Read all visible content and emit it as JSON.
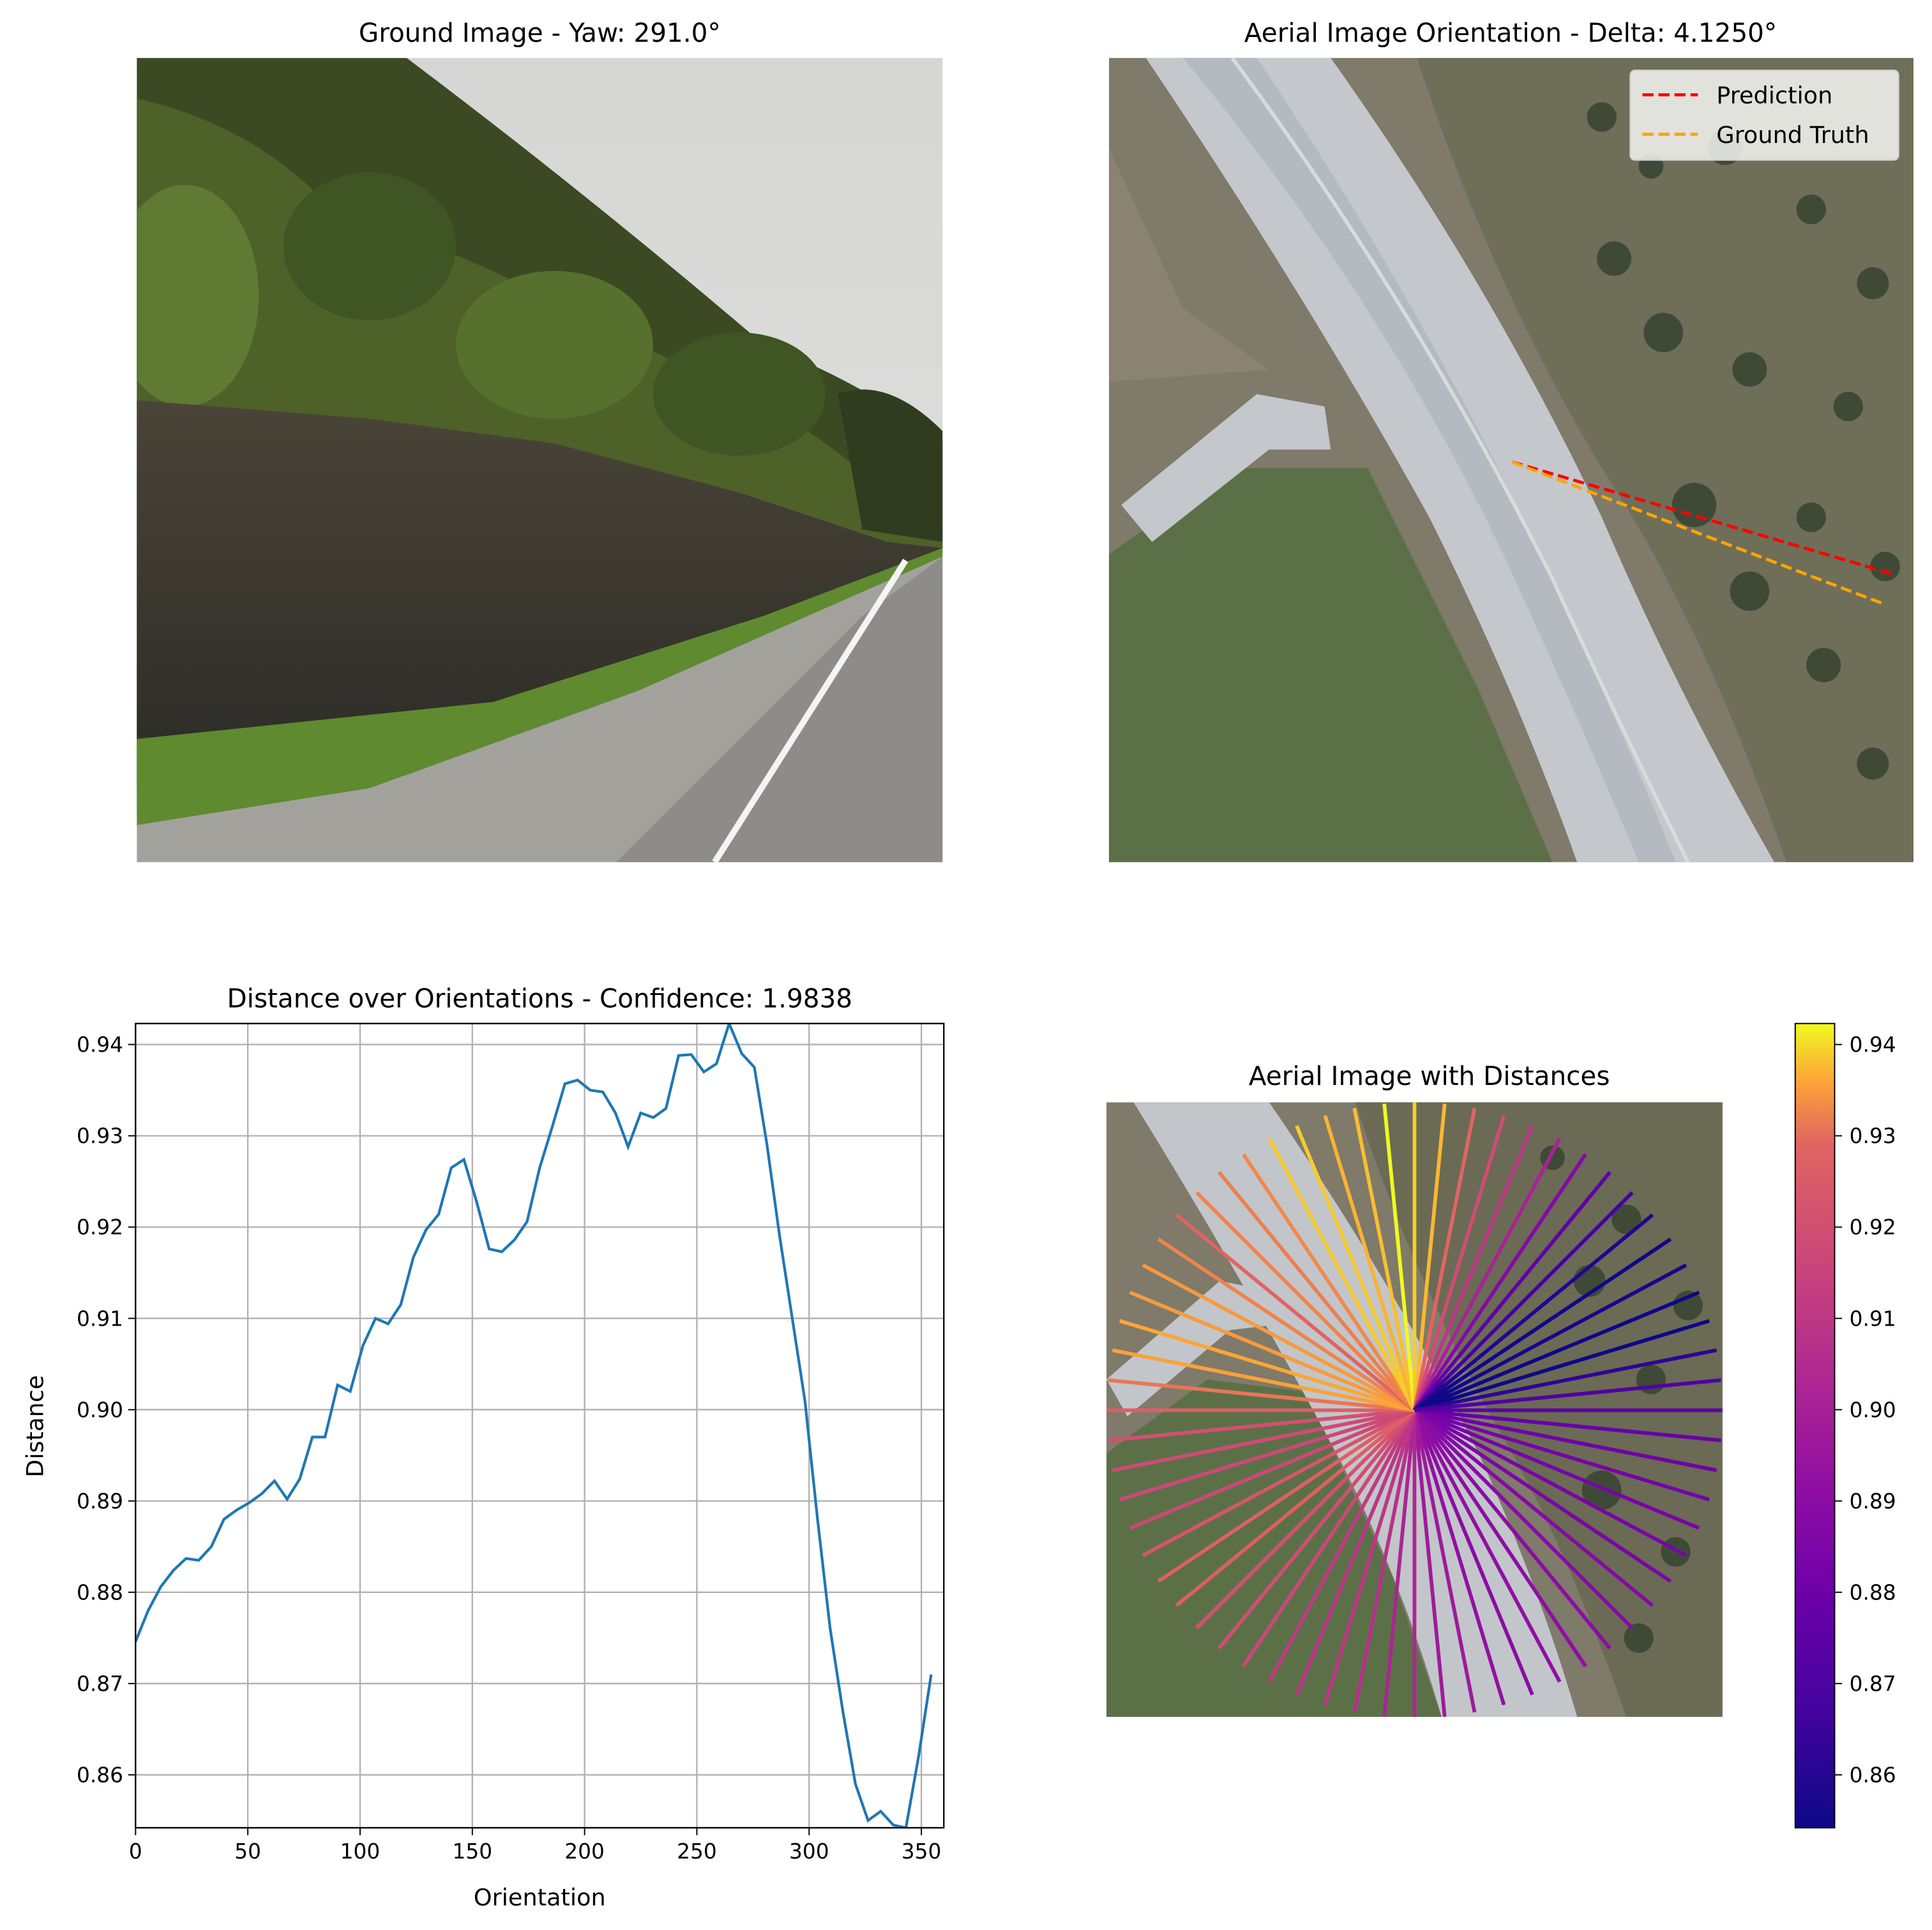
{
  "panels": {
    "ground": {
      "title": "Ground Image - Yaw: 291.0°"
    },
    "aerial": {
      "title": "Aerial Image Orientation - Delta: 4.1250°"
    },
    "dist_aerial": {
      "title": "Aerial Image with Distances"
    }
  },
  "legend": {
    "entries": [
      {
        "label": "Prediction",
        "color": "#ff0000"
      },
      {
        "label": "Ground Truth",
        "color": "#ffa500"
      }
    ]
  },
  "colorbar": {
    "colormap": "plasma",
    "range": [
      0.8542,
      0.9423
    ],
    "ticks": [
      "0.86",
      "0.87",
      "0.88",
      "0.89",
      "0.90",
      "0.91",
      "0.92",
      "0.93",
      "0.94"
    ]
  },
  "chart_data": {
    "type": "line",
    "title": "Distance over Orientations - Confidence: 1.9838",
    "xlabel": "Orientation",
    "ylabel": "Distance",
    "xlim": [
      0,
      360
    ],
    "ylim": [
      0.8542,
      0.9423
    ],
    "grid": true,
    "color": "#1f77b4",
    "xticks": [
      0,
      50,
      100,
      150,
      200,
      250,
      300,
      350
    ],
    "yticks": [
      0.86,
      0.87,
      0.88,
      0.89,
      0.9,
      0.91,
      0.92,
      0.93,
      0.94
    ],
    "ytick_labels": [
      "0.86",
      "0.87",
      "0.88",
      "0.89",
      "0.90",
      "0.91",
      "0.92",
      "0.93",
      "0.94"
    ],
    "x": [
      0,
      5.625,
      11.25,
      16.875,
      22.5,
      28.125,
      33.75,
      39.375,
      45,
      50.625,
      56.25,
      61.875,
      67.5,
      73.125,
      78.75,
      84.375,
      90,
      95.625,
      101.25,
      106.875,
      112.5,
      118.125,
      123.75,
      129.375,
      135,
      140.625,
      146.25,
      151.875,
      157.5,
      163.125,
      168.75,
      174.375,
      180,
      185.625,
      191.25,
      196.875,
      202.5,
      208.125,
      213.75,
      219.375,
      225,
      230.625,
      236.25,
      241.875,
      247.5,
      253.125,
      258.75,
      264.375,
      270,
      275.625,
      281.25,
      286.875,
      292.5,
      298.125,
      303.75,
      309.375,
      315,
      320.625,
      326.25,
      331.875,
      337.5,
      343.125,
      348.75,
      354.375
    ],
    "values": [
      0.8746,
      0.878,
      0.8806,
      0.8824,
      0.8837,
      0.8835,
      0.885,
      0.888,
      0.889,
      0.8898,
      0.8908,
      0.8922,
      0.8902,
      0.8924,
      0.897,
      0.897,
      0.9027,
      0.902,
      0.907,
      0.91,
      0.9094,
      0.9115,
      0.9167,
      0.9197,
      0.9214,
      0.9265,
      0.9274,
      0.9228,
      0.9176,
      0.9173,
      0.9186,
      0.9206,
      0.9265,
      0.931,
      0.9357,
      0.9361,
      0.935,
      0.9348,
      0.9325,
      0.9288,
      0.9325,
      0.932,
      0.933,
      0.9388,
      0.9389,
      0.937,
      0.9379,
      0.9423,
      0.939,
      0.9375,
      0.929,
      0.919,
      0.91,
      0.901,
      0.888,
      0.876,
      0.867,
      0.859,
      0.855,
      0.856,
      0.8545,
      0.8542,
      0.862,
      0.871
    ]
  }
}
